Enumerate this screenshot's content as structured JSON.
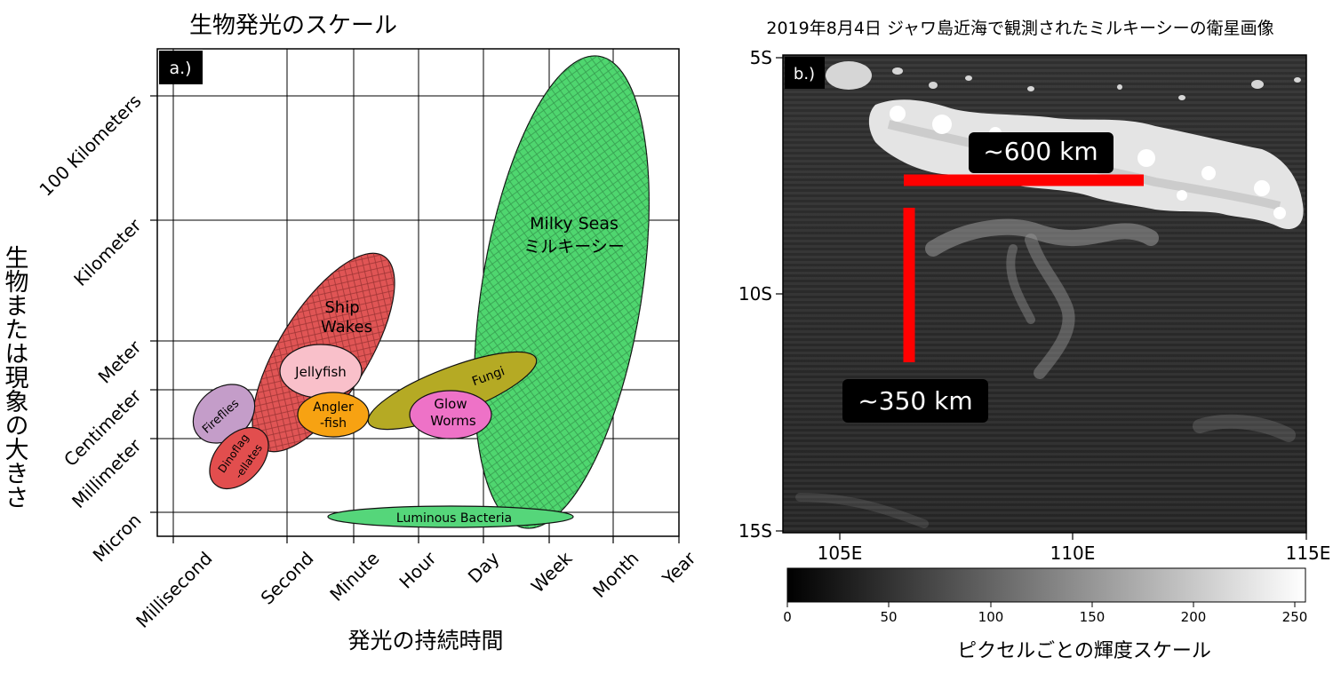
{
  "panel_a": {
    "title": "生物発光のスケール",
    "panel_label": "a.)",
    "xlabel": "発光の持続時間",
    "ylabel": "生物または現象の大きさ",
    "x_ticks": [
      "Millisecond",
      "Second",
      "Minute",
      "Hour",
      "Day",
      "Week",
      "Month",
      "Year"
    ],
    "y_ticks": [
      "Micron",
      "Millimeter",
      "Centimeter",
      "Meter",
      "Kilometer",
      "100 Kilometers"
    ]
  },
  "panel_b": {
    "title": "2019年8月4日 ジャワ島近海で観測されたミルキーシーの衛星画像",
    "panel_label": "b.)",
    "x_ticks": [
      "105E",
      "110E",
      "115E"
    ],
    "y_ticks": [
      "5S",
      "10S",
      "15S"
    ],
    "annotation_horizontal": "~600 km",
    "annotation_vertical": "~350 km",
    "colorbar_label": "ピクセルごとの輝度スケール",
    "colorbar_ticks": [
      "0",
      "50",
      "100",
      "150",
      "200",
      "250"
    ]
  },
  "colors": {
    "milky_seas": "#4fd66f",
    "ship_wakes": "#e05555",
    "fungi": "#b5aa24",
    "glow_worms": "#ee72c7",
    "jellyfish": "#f9c0ca",
    "angler_fish": "#f7a212",
    "fireflies": "#c49dc9",
    "dinoflagellates": "#e24e4e",
    "luminous_bacteria": "#55d67a",
    "annotation_red": "#ff0000"
  },
  "chart_data": [
    {
      "type": "scatter",
      "title": "生物発光のスケール",
      "xlabel": "発光の持続時間",
      "ylabel": "生物または現象の大きさ",
      "x_scale": "categorical",
      "y_scale": "categorical",
      "categories_x": [
        "Millisecond",
        "Second",
        "Minute",
        "Hour",
        "Day",
        "Week",
        "Month",
        "Year"
      ],
      "categories_y": [
        "Micron",
        "Millimeter",
        "Centimeter",
        "Meter",
        "Kilometer",
        "100 Kilometers"
      ],
      "grid": true,
      "regions": [
        {
          "name": "Milky Seas\nミルキーシー",
          "duration": [
            "Day",
            "Month"
          ],
          "size": [
            "Micron",
            "100 Kilometers"
          ]
        },
        {
          "name": "Ship\nWakes",
          "duration": [
            "Second",
            "Hour"
          ],
          "size": [
            "Millimeter",
            "Kilometer"
          ]
        },
        {
          "name": "Fungi",
          "duration": [
            "Minute",
            "Day"
          ],
          "size": [
            "Millimeter",
            "Meter"
          ]
        },
        {
          "name": "Glow\nWorms",
          "duration": [
            "Hour",
            "Day"
          ],
          "size": [
            "Millimeter",
            "Centimeter"
          ]
        },
        {
          "name": "Jellyfish",
          "duration": [
            "Second",
            "Minute"
          ],
          "size": [
            "Centimeter",
            "Meter"
          ]
        },
        {
          "name": "Angler\n-fish",
          "duration": [
            "Second",
            "Minute"
          ],
          "size": [
            "Millimeter",
            "Centimeter"
          ]
        },
        {
          "name": "Fireflies",
          "duration": [
            "Millisecond",
            "Second"
          ],
          "size": [
            "Millimeter",
            "Centimeter"
          ]
        },
        {
          "name": "Dinoflag\n-ellates",
          "duration": [
            "Millisecond",
            "Second"
          ],
          "size": [
            "Micron",
            "Millimeter"
          ]
        },
        {
          "name": "Luminous Bacteria",
          "duration": [
            "Minute",
            "Week"
          ],
          "size": [
            "Micron",
            "Micron"
          ]
        }
      ]
    },
    {
      "type": "heatmap",
      "title": "2019年8月4日 ジャワ島近海で観測されたミルキーシーの衛星画像",
      "x_ticks": [
        "105E",
        "110E",
        "115E"
      ],
      "y_ticks": [
        "5S",
        "10S",
        "15S"
      ],
      "xlim": [
        "104E",
        "115E"
      ],
      "ylim": [
        "15S",
        "5S"
      ],
      "colormap": "gray",
      "colorbar": {
        "label": "ピクセルごとの輝度スケール",
        "min": 0,
        "max": 255,
        "ticks": [
          0,
          50,
          100,
          150,
          200,
          250
        ]
      },
      "annotations": [
        "~600 km",
        "~350 km"
      ]
    }
  ]
}
